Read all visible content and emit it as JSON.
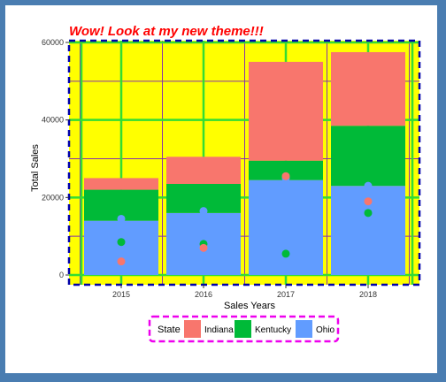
{
  "colors": {
    "page_background": "#4a7db1",
    "panel_background": "#ffff00",
    "major_grid": "#33dd33",
    "minor_grid": "#8833aa",
    "panel_border": "#0000aa",
    "legend_border": "#ee00ee",
    "title": "#ff0000"
  },
  "chart_data": {
    "type": "bar",
    "stacked": true,
    "title": "Wow! Look at my new theme!!!",
    "xlabel": "Sales Years",
    "ylabel": "Total Sales",
    "categories": [
      "2015",
      "2016",
      "2017",
      "2018"
    ],
    "ylim": [
      0,
      60000
    ],
    "yticks": [
      0,
      20000,
      40000,
      60000
    ],
    "series": [
      {
        "name": "Ohio",
        "color": "#619cff",
        "values": [
          14000,
          16000,
          24500,
          23000
        ]
      },
      {
        "name": "Kentucky",
        "color": "#00ba38",
        "values": [
          8000,
          7500,
          5000,
          15500
        ]
      },
      {
        "name": "Indiana",
        "color": "#f8766d",
        "values": [
          3000,
          7000,
          25500,
          19000
        ]
      }
    ],
    "points": [
      {
        "name": "Ohio",
        "color": "#619cff",
        "values": [
          14500,
          16500,
          25000,
          23000
        ]
      },
      {
        "name": "Kentucky",
        "color": "#00ba38",
        "values": [
          8500,
          8000,
          5500,
          16000
        ]
      },
      {
        "name": "Indiana",
        "color": "#f8766d",
        "values": [
          3500,
          7000,
          25500,
          19000
        ]
      }
    ],
    "legend": {
      "title": "State",
      "position": "bottom",
      "items": [
        {
          "label": "Indiana",
          "color": "#f8766d"
        },
        {
          "label": "Kentucky",
          "color": "#00ba38"
        },
        {
          "label": "Ohio",
          "color": "#619cff"
        }
      ]
    },
    "grid": true
  }
}
